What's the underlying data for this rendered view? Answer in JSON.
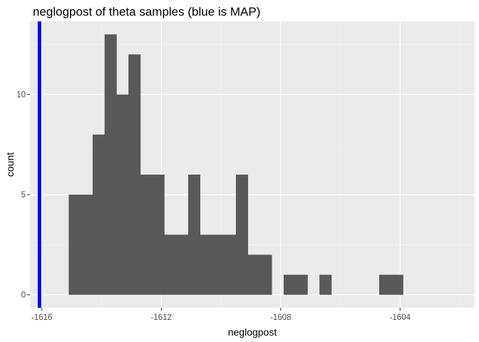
{
  "chart_data": {
    "type": "histogram",
    "title": "neglogpost of theta samples (blue is MAP)",
    "xlabel": "neglogpost",
    "ylabel": "count",
    "xlim": [
      -1616.4,
      -1601.5
    ],
    "ylim": [
      -0.65,
      13.65
    ],
    "xticks": [
      -1616,
      -1612,
      -1608,
      -1604
    ],
    "xtick_labels": [
      "-1616",
      "-1612",
      "-1608",
      "-1604"
    ],
    "yticks": [
      0,
      5,
      10
    ],
    "ytick_labels": [
      "0",
      "5",
      "10"
    ],
    "bin_start": -1615.1,
    "bin_width": 0.4,
    "counts": [
      5,
      5,
      8,
      13,
      10,
      12,
      6,
      6,
      3,
      3,
      6,
      3,
      3,
      3,
      6,
      2,
      2,
      0,
      1,
      1,
      0,
      1,
      0,
      0,
      0,
      0,
      1,
      1
    ],
    "map_value": -1616.08,
    "colors": {
      "panel_background": "#ebebeb",
      "grid_major": "#ffffff",
      "grid_minor": "#f5f5f5",
      "bar_fill": "#595959",
      "map_line": "#0000ff"
    },
    "grid": true,
    "legend": "none"
  }
}
